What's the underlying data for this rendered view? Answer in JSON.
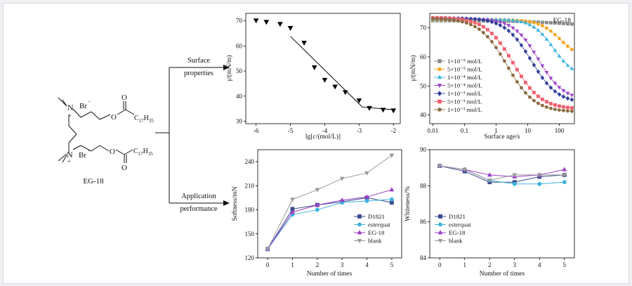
{
  "scheme": {
    "molecule_label": "EG-18",
    "atom_labels": [
      "N",
      "Br",
      "N",
      "Br",
      "O",
      "O",
      "O",
      "O"
    ],
    "charge_symbol": "+",
    "anion_symbol": "-",
    "alkyl_chain": {
      "base": "C",
      "sub1": "17",
      "h": "H",
      "sub2": "35"
    },
    "branch1": [
      "Surface",
      "properties"
    ],
    "branch2": [
      "Application",
      "performance"
    ]
  },
  "chart_data": [
    {
      "id": "surface_tension",
      "type": "scatter",
      "title": "",
      "xlabel_parts": [
        "lg[",
        "c",
        "/(mol/L)]"
      ],
      "ylabel_parts": [
        "γ",
        "/(mN/m)"
      ],
      "xlim": [
        -6.3,
        -1.8
      ],
      "ylim": [
        29,
        73
      ],
      "xticks": [
        -6,
        -5,
        -4,
        -3,
        -2
      ],
      "yticks": [
        30,
        40,
        50,
        60,
        70
      ],
      "series": [
        {
          "marker": "triangle-down",
          "x": [
            -6.0,
            -5.7,
            -5.3,
            -5.0,
            -4.6,
            -4.3,
            -4.0,
            -3.7,
            -3.4,
            -3.0,
            -2.7,
            -2.3,
            -2.0
          ],
          "y": [
            70.2,
            69.6,
            68.8,
            67.2,
            61.3,
            51.5,
            46.5,
            43.8,
            41.6,
            38.3,
            35.3,
            34.6,
            34.3
          ]
        }
      ],
      "fit_line": {
        "x": [
          -5.0,
          -2.9,
          -2.0
        ],
        "y": [
          63.8,
          35.6,
          34.6
        ]
      }
    },
    {
      "id": "dynamic_surface_tension",
      "type": "line",
      "title": "EG-18",
      "xlabel": "Surface age/s",
      "ylabel_parts": [
        "γ",
        "/(mN/m)"
      ],
      "xscale": "log",
      "xlim": [
        0.008,
        300
      ],
      "ylim": [
        37,
        75
      ],
      "xticks": [
        0.01,
        0.1,
        1,
        10,
        100
      ],
      "xticklabels": [
        "0.01",
        "0.1",
        "1",
        "10",
        "100"
      ],
      "yticks": [
        40,
        50,
        60,
        70
      ],
      "legend_position": "left-center",
      "series": [
        {
          "name": "1×10⁻⁵ mol/L",
          "color": "#8c8c8c",
          "marker": "square",
          "y0": 72.5,
          "y1": 70.0,
          "t": 300,
          "k": 0.5
        },
        {
          "name": "5×10⁻⁵ mol/L",
          "color": "#f5a623",
          "marker": "circle",
          "y0": 72.8,
          "y1": 59.0,
          "t": 110,
          "k": 1.3
        },
        {
          "name": "1×10⁻⁴ mol/L",
          "color": "#3cb4dc",
          "marker": "triangle-up",
          "y0": 73.0,
          "y1": 53.0,
          "t": 65,
          "k": 1.3
        },
        {
          "name": "5×10⁻⁴ mol/L",
          "color": "#9a3fc6",
          "marker": "triangle-down",
          "y0": 73.2,
          "y1": 45.0,
          "t": 22,
          "k": 1.1
        },
        {
          "name": "1×10⁻³ mol/L",
          "color": "#2f3f9a",
          "marker": "diamond",
          "y0": 73.4,
          "y1": 44.0,
          "t": 13,
          "k": 1.05
        },
        {
          "name": "5×10⁻³ mol/L",
          "color": "#f0606d",
          "marker": "square",
          "y0": 73.6,
          "y1": 42.0,
          "t": 3.5,
          "k": 1.0
        },
        {
          "name": "1×10⁻² mol/L",
          "color": "#8b6a3e",
          "marker": "circle",
          "y0": 73.3,
          "y1": 41.0,
          "t": 2.2,
          "k": 1.0
        }
      ]
    },
    {
      "id": "softness",
      "type": "line",
      "title": "",
      "xlabel": "Number of times",
      "ylabel": "Softness/mN",
      "xlim": [
        -0.4,
        5.4
      ],
      "ylim": [
        120,
        255
      ],
      "xticks": [
        0,
        1,
        2,
        3,
        4,
        5
      ],
      "yticks": [
        120,
        150,
        180,
        210,
        240
      ],
      "legend_position": "bottom-right",
      "series": [
        {
          "name": "D1821",
          "color": "#3a4a8c",
          "marker": "square",
          "x": [
            0,
            1,
            2,
            3,
            4,
            5
          ],
          "y": [
            131,
            181,
            186,
            190,
            195,
            189
          ]
        },
        {
          "name": "esterquat",
          "color": "#3cb4dc",
          "marker": "circle",
          "x": [
            0,
            1,
            2,
            3,
            4,
            5
          ],
          "y": [
            131,
            174,
            180,
            189,
            191,
            193
          ]
        },
        {
          "name": "EG-18",
          "color": "#9a3fc6",
          "marker": "triangle-up",
          "x": [
            0,
            1,
            2,
            3,
            4,
            5
          ],
          "y": [
            131,
            177,
            186,
            192,
            196,
            205
          ]
        },
        {
          "name": "blank",
          "color": "#9a9a9a",
          "marker": "triangle-down",
          "x": [
            0,
            1,
            2,
            3,
            4,
            5
          ],
          "y": [
            131,
            193,
            205,
            219,
            226,
            248
          ]
        }
      ]
    },
    {
      "id": "whiteness",
      "type": "line",
      "title": "",
      "xlabel": "Number of times",
      "ylabel": "Whiteness/%",
      "xlim": [
        -0.4,
        5.4
      ],
      "ylim": [
        84,
        90
      ],
      "xticks": [
        0,
        1,
        2,
        3,
        4,
        5
      ],
      "yticks": [
        84,
        86,
        88,
        90
      ],
      "legend_position": "bottom-left",
      "series": [
        {
          "name": "D1821",
          "color": "#3a4a8c",
          "marker": "square",
          "x": [
            0,
            1,
            2,
            3,
            4,
            5
          ],
          "y": [
            89.1,
            88.8,
            88.2,
            88.2,
            88.5,
            88.6
          ]
        },
        {
          "name": "esterquat",
          "color": "#3cb4dc",
          "marker": "circle",
          "x": [
            0,
            1,
            2,
            3,
            4,
            5
          ],
          "y": [
            89.1,
            88.9,
            88.3,
            88.1,
            88.1,
            88.2
          ]
        },
        {
          "name": "EG-18",
          "color": "#9a3fc6",
          "marker": "triangle-up",
          "x": [
            0,
            1,
            2,
            3,
            4,
            5
          ],
          "y": [
            89.1,
            88.9,
            88.6,
            88.5,
            88.6,
            88.9
          ]
        },
        {
          "name": "blank",
          "color": "#9a9a9a",
          "marker": "triangle-down",
          "x": [
            0,
            1,
            2,
            3,
            4,
            5
          ],
          "y": [
            89.1,
            88.9,
            88.3,
            88.6,
            88.6,
            88.6
          ]
        }
      ]
    }
  ]
}
